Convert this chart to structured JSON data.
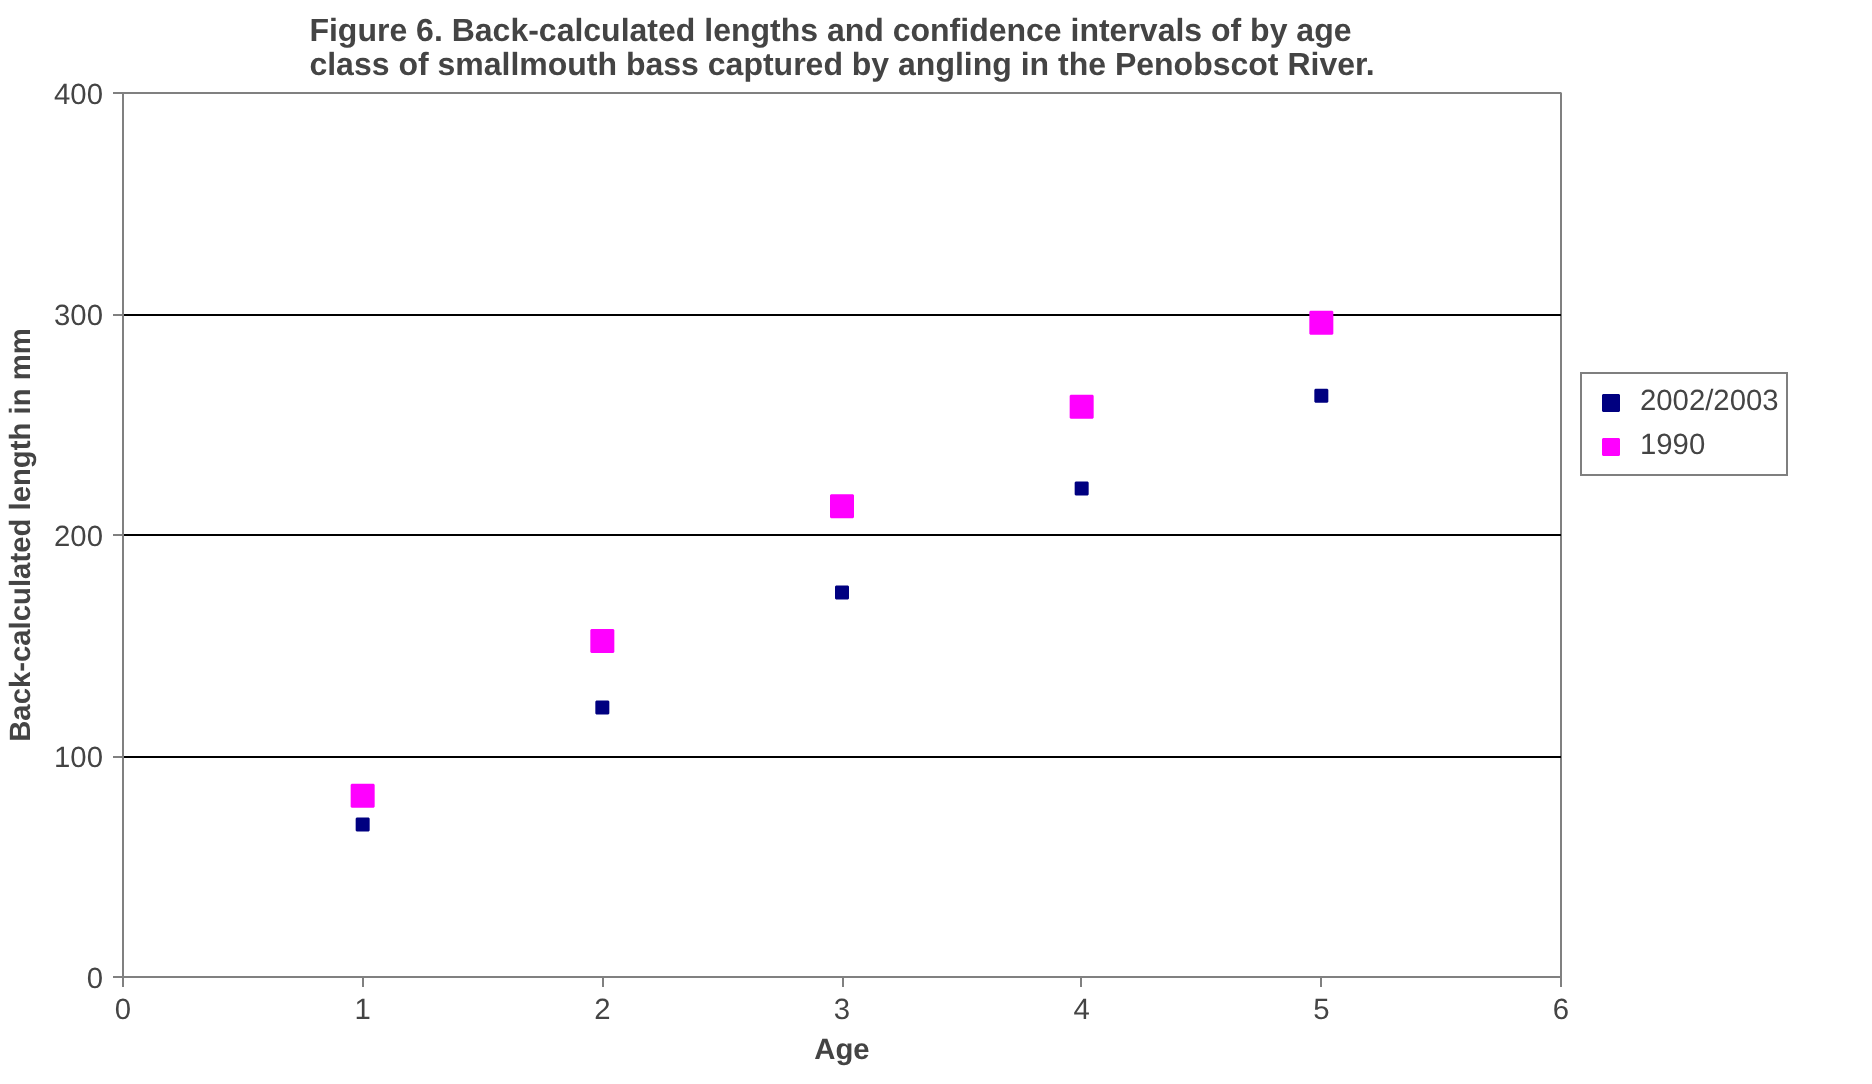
{
  "chart_data": {
    "type": "scatter",
    "title": "Figure 6.  Back-calculated lengths and confidence intervals of by age\nclass of smallmouth bass captured by angling in the Penobscot River.",
    "xlabel": "Age",
    "ylabel": "Back-calculated length in mm",
    "xlim": [
      0,
      6
    ],
    "xticks": [
      0,
      1,
      2,
      3,
      4,
      5,
      6
    ],
    "ylim": [
      0,
      400
    ],
    "yticks": [
      0,
      100,
      200,
      300,
      400
    ],
    "grid": "y",
    "legend": "right",
    "series": [
      {
        "name": "2002/2003",
        "color": "#000080",
        "marker": "square",
        "x": [
          1,
          2,
          3,
          4,
          5
        ],
        "values": [
          69,
          122,
          174,
          221,
          263
        ]
      },
      {
        "name": "1990",
        "color": "#ff00ff",
        "marker": "square",
        "x": [
          1,
          2,
          3,
          4,
          5
        ],
        "values": [
          82,
          152,
          213,
          258,
          296
        ]
      }
    ]
  }
}
